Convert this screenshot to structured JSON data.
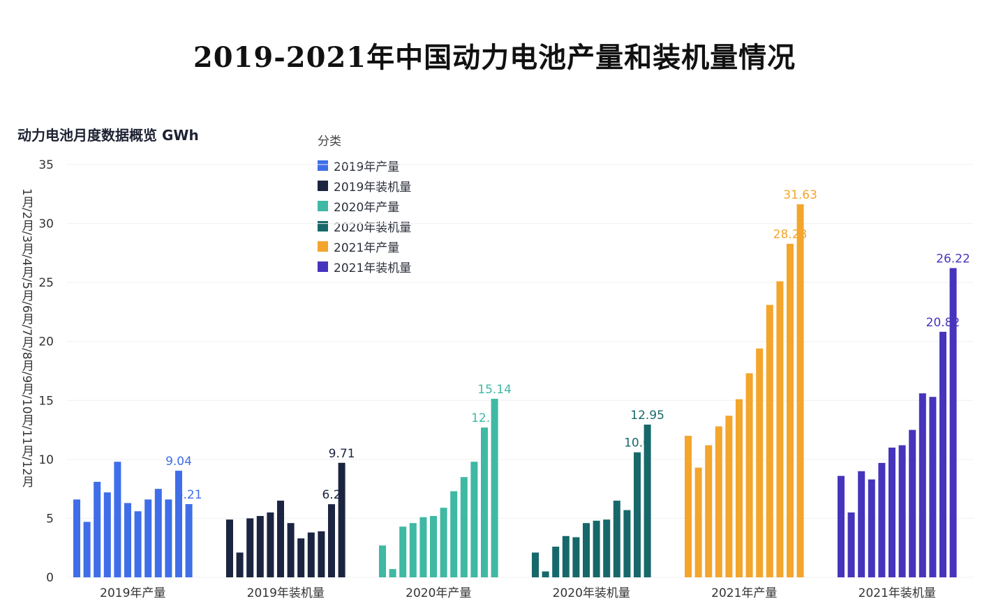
{
  "title": "2019-2021年中国动力电池产量和装机量情况",
  "chart_data": {
    "type": "bar",
    "subtitle": "动力电池月度数据概览 GWh",
    "ylabel": "1月/2月/3月/4月/5月/6月/7月/8月/9月/10月/11月/12月",
    "ylim": [
      0,
      35
    ],
    "yticks": [
      0,
      5,
      10,
      15,
      20,
      25,
      30,
      35
    ],
    "legend_title": "分类",
    "legend_placement": "top-center",
    "grid": true,
    "groups": [
      {
        "name": "2019年产量",
        "color": "#3f6ee8",
        "values": [
          6.6,
          4.7,
          8.1,
          7.2,
          9.8,
          6.3,
          5.6,
          6.6,
          7.5,
          6.6,
          9.04,
          6.21
        ],
        "labels": {
          "10": "9.04",
          "11": "6.21"
        }
      },
      {
        "name": "2019年装机量",
        "color": "#1b2440",
        "values": [
          4.9,
          2.1,
          5.0,
          5.2,
          5.5,
          6.5,
          4.6,
          3.3,
          3.8,
          3.9,
          6.2,
          9.71
        ],
        "labels": {
          "10": "6.2",
          "11": "9.71"
        }
      },
      {
        "name": "2020年产量",
        "color": "#3fb8a4",
        "values": [
          2.7,
          0.7,
          4.3,
          4.6,
          5.1,
          5.2,
          5.9,
          7.3,
          8.5,
          9.8,
          12.7,
          15.14
        ],
        "labels": {
          "10": "12.7",
          "11": "15.14"
        }
      },
      {
        "name": "2020年装机量",
        "color": "#17686a",
        "values": [
          2.1,
          0.5,
          2.6,
          3.5,
          3.4,
          4.6,
          4.8,
          4.9,
          6.5,
          5.7,
          10.6,
          12.95
        ],
        "labels": {
          "10": "10.6",
          "11": "12.95"
        }
      },
      {
        "name": "2021年产量",
        "color": "#f3a52c",
        "values": [
          12.0,
          9.3,
          11.2,
          12.8,
          13.7,
          15.1,
          17.3,
          19.4,
          23.1,
          25.1,
          28.28,
          31.63
        ],
        "labels": {
          "10": "28.28",
          "11": "31.63"
        }
      },
      {
        "name": "2021年装机量",
        "color": "#4634bc",
        "values": [
          8.6,
          5.5,
          9.0,
          8.3,
          9.7,
          11.0,
          11.2,
          12.5,
          15.6,
          15.3,
          20.82,
          26.22
        ],
        "labels": {
          "10": "20.82",
          "11": "26.22"
        }
      }
    ]
  }
}
